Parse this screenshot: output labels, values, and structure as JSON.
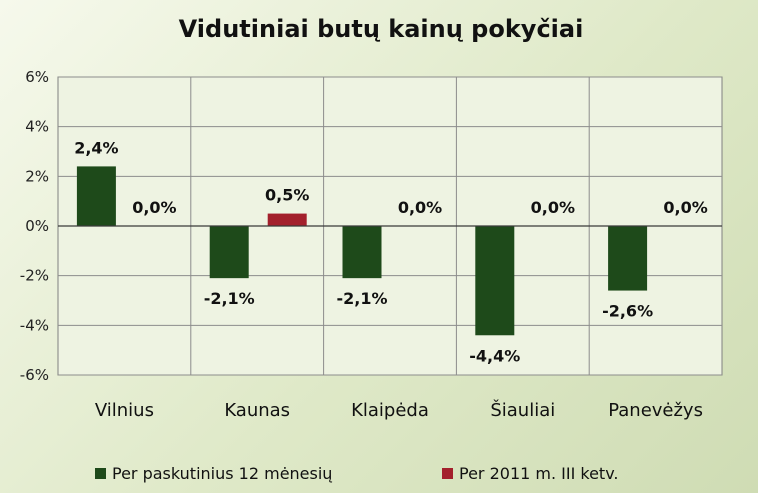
{
  "chart_data": {
    "type": "bar",
    "title": "Vidutiniai butų kainų pokyčiai",
    "categories": [
      "Vilnius",
      "Kaunas",
      "Klaipėda",
      "Šiauliai",
      "Panevėžys"
    ],
    "series": [
      {
        "name": "Per paskutinius 12 mėnesių",
        "color": "#1e4a1a",
        "values": [
          2.4,
          -2.1,
          -2.1,
          -4.4,
          -2.6
        ],
        "labels": [
          "2,4%",
          "-2,1%",
          "-2,1%",
          "-4,4%",
          "-2,6%"
        ]
      },
      {
        "name": "Per 2011 m. III ketv.",
        "color": "#a3202c",
        "values": [
          0.0,
          0.5,
          0.0,
          0.0,
          0.0
        ],
        "labels": [
          "0,0%",
          "0,5%",
          "0,0%",
          "0,0%",
          "0,0%"
        ]
      }
    ],
    "ylim": [
      -6,
      6
    ],
    "yticks": [
      6,
      4,
      2,
      0,
      -2,
      -4,
      -6
    ],
    "ytick_labels": [
      "6%",
      "4%",
      "2%",
      "0%",
      "-2%",
      "-4%",
      "-6%"
    ],
    "xlabel": "",
    "ylabel": "",
    "grid": true,
    "legend_position": "bottom"
  }
}
